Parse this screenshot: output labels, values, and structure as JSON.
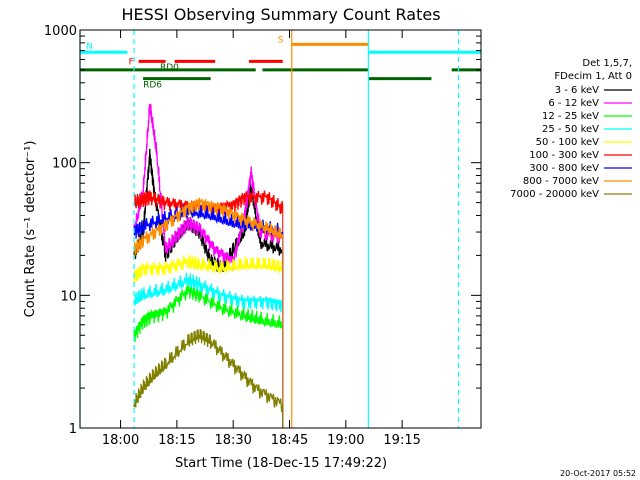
{
  "chart_data": {
    "type": "line",
    "title": "HESSI Observing Summary Count Rates",
    "xlabel": "Start Time (18-Dec-15 17:49:22)",
    "ylabel": "Count Rate (s⁻¹ detector⁻¹)",
    "y_scale": "log",
    "ylim": [
      1,
      1000
    ],
    "xlim_minutes": [
      17.82,
      19.6
    ],
    "x_ticks": [
      {
        "t": 18.0,
        "label": "18:00"
      },
      {
        "t": 18.25,
        "label": "18:15"
      },
      {
        "t": 18.5,
        "label": "18:30"
      },
      {
        "t": 18.75,
        "label": "18:45"
      },
      {
        "t": 19.0,
        "label": "19:00"
      },
      {
        "t": 19.25,
        "label": "19:15"
      }
    ],
    "y_ticks": [
      {
        "v": 1,
        "label": "1"
      },
      {
        "v": 10,
        "label": "10"
      },
      {
        "v": 100,
        "label": "100"
      },
      {
        "v": 1000,
        "label": "1000"
      }
    ],
    "legend_header": [
      "Det 1,5,7,",
      "FDecim 1, Att 0"
    ],
    "legend_position": "right",
    "series": [
      {
        "name": "3 - 6 keV",
        "color": "#000000",
        "points": [
          [
            18.06,
            20
          ],
          [
            18.1,
            30
          ],
          [
            18.13,
            115
          ],
          [
            18.15,
            60
          ],
          [
            18.2,
            20
          ],
          [
            18.25,
            28
          ],
          [
            18.3,
            36
          ],
          [
            18.35,
            30
          ],
          [
            18.4,
            18
          ],
          [
            18.45,
            16
          ],
          [
            18.5,
            22
          ],
          [
            18.55,
            30
          ],
          [
            18.58,
            65
          ],
          [
            18.62,
            25
          ],
          [
            18.72,
            22
          ]
        ]
      },
      {
        "name": "6 - 12 keV",
        "color": "#ff00ff",
        "points": [
          [
            18.06,
            30
          ],
          [
            18.1,
            60
          ],
          [
            18.13,
            270
          ],
          [
            18.16,
            120
          ],
          [
            18.2,
            22
          ],
          [
            18.25,
            28
          ],
          [
            18.3,
            35
          ],
          [
            18.35,
            32
          ],
          [
            18.42,
            22
          ],
          [
            18.5,
            18
          ],
          [
            18.55,
            40
          ],
          [
            18.58,
            85
          ],
          [
            18.62,
            30
          ],
          [
            18.72,
            27
          ]
        ]
      },
      {
        "name": "12 - 25 keV",
        "color": "#00ff00",
        "points": [
          [
            18.06,
            5
          ],
          [
            18.1,
            6.5
          ],
          [
            18.13,
            7
          ],
          [
            18.2,
            7.5
          ],
          [
            18.3,
            11
          ],
          [
            18.35,
            10
          ],
          [
            18.45,
            8
          ],
          [
            18.55,
            7
          ],
          [
            18.62,
            6.5
          ],
          [
            18.72,
            6
          ]
        ]
      },
      {
        "name": "25 - 50 keV",
        "color": "#00ffff",
        "points": [
          [
            18.06,
            9
          ],
          [
            18.1,
            10
          ],
          [
            18.2,
            11
          ],
          [
            18.3,
            13
          ],
          [
            18.35,
            12
          ],
          [
            18.45,
            10
          ],
          [
            18.55,
            9
          ],
          [
            18.65,
            9
          ],
          [
            18.72,
            8.5
          ]
        ]
      },
      {
        "name": "50 - 100 keV",
        "color": "#ffff00",
        "points": [
          [
            18.06,
            14
          ],
          [
            18.1,
            16
          ],
          [
            18.2,
            16
          ],
          [
            18.3,
            18
          ],
          [
            18.35,
            17
          ],
          [
            18.45,
            16
          ],
          [
            18.55,
            17
          ],
          [
            18.65,
            17
          ],
          [
            18.72,
            16
          ]
        ]
      },
      {
        "name": "100 - 300 keV",
        "color": "#ff0000",
        "points": [
          [
            18.06,
            50
          ],
          [
            18.1,
            52
          ],
          [
            18.13,
            55
          ],
          [
            18.2,
            50
          ],
          [
            18.3,
            47
          ],
          [
            18.4,
            45
          ],
          [
            18.5,
            48
          ],
          [
            18.55,
            55
          ],
          [
            18.65,
            55
          ],
          [
            18.72,
            45
          ]
        ]
      },
      {
        "name": "300 - 800 keV",
        "color": "#0000ff",
        "points": [
          [
            18.06,
            30
          ],
          [
            18.1,
            33
          ],
          [
            18.2,
            38
          ],
          [
            18.3,
            43
          ],
          [
            18.4,
            40
          ],
          [
            18.5,
            35
          ],
          [
            18.6,
            33
          ],
          [
            18.72,
            30
          ]
        ]
      },
      {
        "name": "800 - 7000 keV",
        "color": "#ff8c00",
        "points": [
          [
            18.06,
            22
          ],
          [
            18.1,
            26
          ],
          [
            18.2,
            34
          ],
          [
            18.3,
            46
          ],
          [
            18.35,
            50
          ],
          [
            18.45,
            45
          ],
          [
            18.55,
            37
          ],
          [
            18.65,
            32
          ],
          [
            18.72,
            28
          ]
        ]
      },
      {
        "name": "7000 - 20000 keV",
        "color": "#808000",
        "points": [
          [
            18.06,
            1.5
          ],
          [
            18.1,
            2
          ],
          [
            18.15,
            2.5
          ],
          [
            18.2,
            3
          ],
          [
            18.3,
            4.5
          ],
          [
            18.35,
            5
          ],
          [
            18.4,
            4.5
          ],
          [
            18.5,
            3
          ],
          [
            18.6,
            2
          ],
          [
            18.72,
            1.5
          ]
        ]
      }
    ],
    "flags": [
      {
        "label": "N",
        "color": "#00ffff",
        "v": 680,
        "segments": [
          [
            17.82,
            18.03
          ],
          [
            19.1,
            19.6
          ]
        ]
      },
      {
        "label": "S",
        "color": "#ff8c00",
        "v": 780,
        "segments": [
          [
            18.76,
            19.1
          ]
        ]
      },
      {
        "label": "F",
        "color": "#ff0000",
        "v": 580,
        "segments": [
          [
            18.08,
            18.2
          ],
          [
            18.24,
            18.42
          ],
          [
            18.57,
            18.72
          ]
        ]
      },
      {
        "label": "RD0",
        "color": "#006400",
        "v": 500,
        "segments": [
          [
            17.82,
            18.6
          ],
          [
            18.63,
            19.1
          ],
          [
            19.47,
            19.6
          ]
        ]
      },
      {
        "label": "RD6",
        "color": "#006400",
        "v": 430,
        "segments": [
          [
            18.1,
            18.4
          ],
          [
            19.1,
            19.38
          ]
        ]
      }
    ],
    "vlines": [
      {
        "t": 17.82,
        "color": "#00ffff",
        "style": "solid"
      },
      {
        "t": 18.06,
        "color": "#00ffff",
        "style": "dashed"
      },
      {
        "t": 18.76,
        "color": "#ff8c00",
        "style": "solid"
      },
      {
        "t": 19.1,
        "color": "#00ffff",
        "style": "solid"
      },
      {
        "t": 19.5,
        "color": "#00ffff",
        "style": "dashed"
      }
    ]
  },
  "timestamp": "20-Oct-2017 05:52"
}
